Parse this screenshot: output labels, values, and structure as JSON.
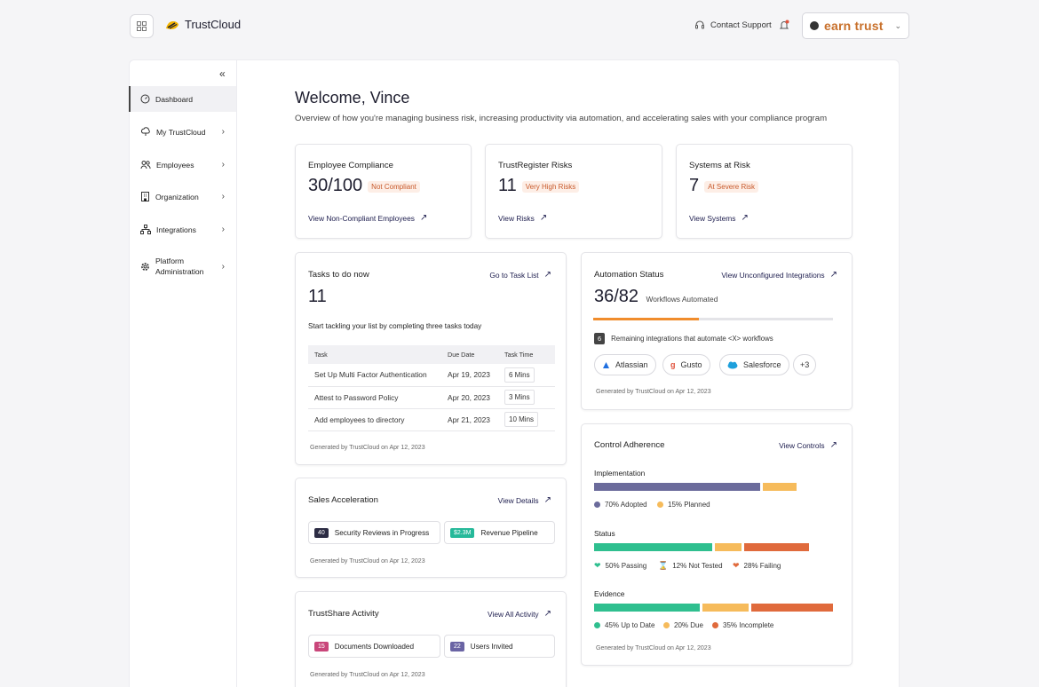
{
  "header": {
    "app_name": "TrustCloud",
    "support_label": "Contact Support",
    "brand": "earn trust"
  },
  "sidebar": {
    "items": [
      {
        "label": "Dashboard"
      },
      {
        "label": "My TrustCloud"
      },
      {
        "label": "Employees"
      },
      {
        "label": "Organization"
      },
      {
        "label": "Integrations"
      },
      {
        "label": "Platform Administration"
      }
    ]
  },
  "main": {
    "title": "Welcome, Vince",
    "subtitle": "Overview of how you're managing business risk, increasing productivity via automation, and accelerating sales with your compliance program"
  },
  "summary_cards": [
    {
      "label": "Employee Compliance",
      "value": "30/100",
      "pill": "Not Compliant",
      "link": "View Non-Compliant Employees"
    },
    {
      "label": "TrustRegister Risks",
      "value": "11",
      "pill": "Very High Risks",
      "link": "View Risks"
    },
    {
      "label": "Systems at Risk",
      "value": "7",
      "pill": "At Severe Risk",
      "link": "View Systems"
    }
  ],
  "tasks": {
    "title": "Tasks to do now",
    "link": "Go to Task List",
    "count": "11",
    "intro": "Start tackling your list by completing three tasks today",
    "headers": {
      "task": "Task",
      "due": "Due Date",
      "time": "Task Time"
    },
    "rows": [
      {
        "task": "Set Up Multi Factor Authentication",
        "due": "Apr 19, 2023",
        "time": "6 Mins"
      },
      {
        "task": "Attest to Password Policy",
        "due": "Apr 20, 2023",
        "time": "3 Mins"
      },
      {
        "task": "Add employees to directory",
        "due": "Apr 21, 2023",
        "time": "10 Mins"
      }
    ],
    "generated": "Generated by TrustCloud on Apr 12, 2023"
  },
  "sales": {
    "title": "Sales Acceleration",
    "link": "View Details",
    "chips": [
      {
        "tag": "40",
        "label": "Security Reviews in Progress",
        "color": "#2c2c44"
      },
      {
        "tag": "$2.3M",
        "label": "Revenue Pipeline",
        "color": "#26b99a"
      }
    ],
    "generated": "Generated by TrustCloud on Apr 12, 2023"
  },
  "trustshare": {
    "title": "TrustShare Activity",
    "link": "View All Activity",
    "chips": [
      {
        "tag": "15",
        "label": "Documents Downloaded",
        "color": "#c9467a"
      },
      {
        "tag": "22",
        "label": "Users Invited",
        "color": "#6a64a4"
      }
    ],
    "generated": "Generated by TrustCloud on Apr 12, 2023"
  },
  "automation": {
    "title": "Automation Status",
    "link": "View Unconfigured Integrations",
    "value": "36/82",
    "value_label": "Workflows Automated",
    "progress_fraction": 0.439,
    "remaining_count": "6",
    "remaining_label": "Remaining integrations that automate <X> workflows",
    "integrations": [
      "Atlassian",
      "Gusto",
      "Salesforce",
      "+3"
    ],
    "generated": "Generated by TrustCloud on Apr 12, 2023"
  },
  "control": {
    "title": "Control Adherence",
    "link": "View Controls",
    "implementation": {
      "label": "Implementation",
      "segments": [
        {
          "label": "70% Adopted",
          "pct": 70,
          "color": "#6b6b9b"
        },
        {
          "label": "15% Planned",
          "pct": 15,
          "color": "#f6bb5b"
        }
      ]
    },
    "status": {
      "label": "Status",
      "segments": [
        {
          "label": "50% Passing",
          "pct": 50,
          "color": "#2fbf8f"
        },
        {
          "label": "12% Not Tested",
          "pct": 12,
          "color": "#f6bb5b"
        },
        {
          "label": "28% Failing",
          "pct": 28,
          "color": "#e06a3c"
        }
      ]
    },
    "evidence": {
      "label": "Evidence",
      "segments": [
        {
          "label": "45% Up to Date",
          "pct": 45,
          "color": "#2fbf8f"
        },
        {
          "label": "20% Due",
          "pct": 20,
          "color": "#f6bb5b"
        },
        {
          "label": "35% Incomplete",
          "pct": 35,
          "color": "#e06a3c"
        }
      ]
    },
    "generated": "Generated by TrustCloud on Apr 12, 2023"
  }
}
